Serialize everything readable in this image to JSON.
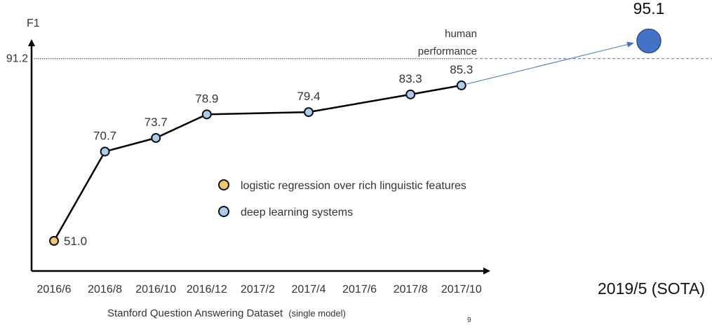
{
  "chart_data": {
    "type": "line",
    "ylabel": "F1",
    "xlabel": "Stanford Question Answering Dataset",
    "xlabel_note": "(single model)",
    "categories": [
      "2016/6",
      "2016/8",
      "2016/10",
      "2016/12",
      "2017/2",
      "2017/4",
      "2017/6",
      "2017/8",
      "2017/10"
    ],
    "points": [
      {
        "x": "2016/6",
        "y": 51.0,
        "label": "51.0",
        "group": "logistic"
      },
      {
        "x": "2016/8",
        "y": 70.7,
        "label": "70.7",
        "group": "deep"
      },
      {
        "x": "2016/10",
        "y": 73.7,
        "label": "73.7",
        "group": "deep"
      },
      {
        "x": "2016/12",
        "y": 78.9,
        "label": "78.9",
        "group": "deep"
      },
      {
        "x": "2017/4",
        "y": 79.4,
        "label": "79.4",
        "group": "deep"
      },
      {
        "x": "2017/8",
        "y": 83.3,
        "label": "83.3",
        "group": "deep"
      },
      {
        "x": "2017/10",
        "y": 85.3,
        "label": "85.3",
        "group": "deep"
      }
    ],
    "human_performance": {
      "value": 91.2,
      "label": "91.2",
      "text_line1": "human",
      "text_line2": "performance"
    },
    "sota": {
      "x": "2019/5 (SOTA)",
      "y": 95.1,
      "label": "95.1"
    },
    "legend": [
      {
        "key": "logistic",
        "label": "logistic regression over rich linguistic features",
        "color": "#f2c571"
      },
      {
        "key": "deep",
        "label": "deep learning systems",
        "color": "#a9cdef"
      }
    ],
    "sota_color": "#4472c4",
    "grid": false
  },
  "page_number": "9"
}
